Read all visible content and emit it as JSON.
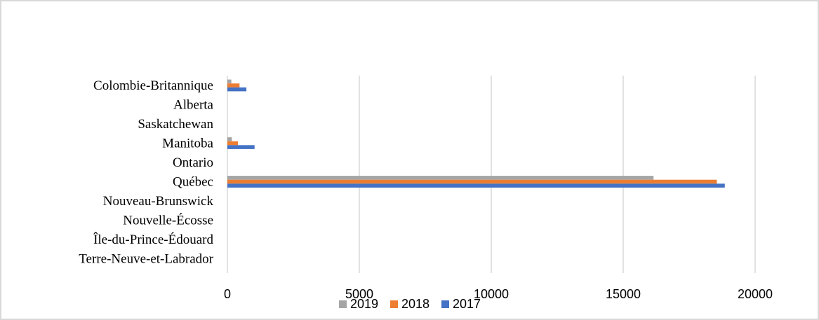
{
  "chart_data": {
    "type": "bar",
    "orientation": "horizontal",
    "categories": [
      "Colombie-Britannique",
      "Alberta",
      "Saskatchewan",
      "Manitoba",
      "Ontario",
      "Québec",
      "Nouveau-Brunswick",
      "Nouvelle-Écosse",
      "Île-du-Prince-Édouard",
      "Terre-Neuve-et-Labrador"
    ],
    "series": [
      {
        "name": "2019",
        "color": "#a5a5a5",
        "values": [
          150,
          0,
          0,
          170,
          0,
          16150,
          0,
          0,
          0,
          0
        ]
      },
      {
        "name": "2018",
        "color": "#ed7d31",
        "values": [
          460,
          0,
          0,
          400,
          0,
          18550,
          0,
          0,
          0,
          0
        ]
      },
      {
        "name": "2017",
        "color": "#4472c4",
        "values": [
          720,
          0,
          0,
          1030,
          0,
          18850,
          0,
          0,
          0,
          0
        ]
      }
    ],
    "xlim": [
      0,
      20000
    ],
    "xticks": [
      "0",
      "5000",
      "10000",
      "15000",
      "20000"
    ],
    "grid": true,
    "legend_position": "bottom",
    "title": "",
    "xlabel": "",
    "ylabel": ""
  }
}
